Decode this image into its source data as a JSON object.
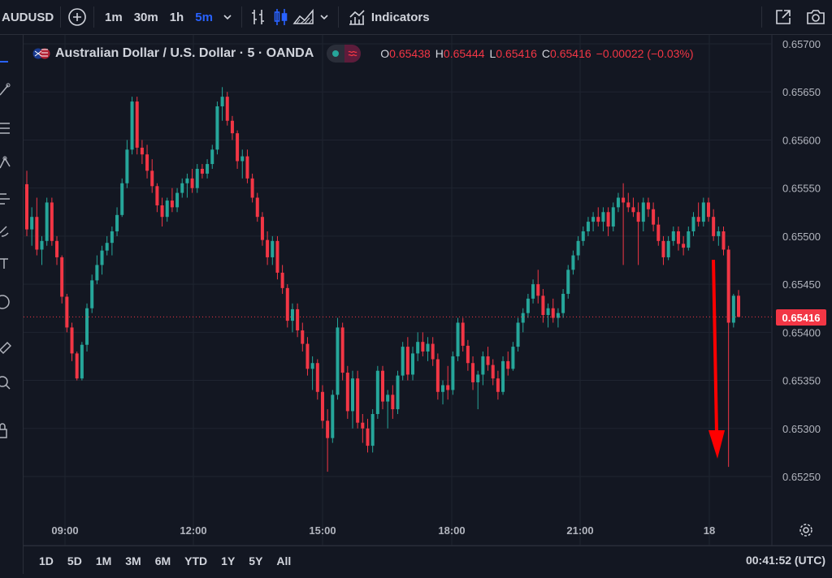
{
  "toolbar": {
    "symbol": "AUDUSD",
    "timeframes": [
      {
        "label": "1m",
        "active": false
      },
      {
        "label": "30m",
        "active": false
      },
      {
        "label": "1h",
        "active": false
      },
      {
        "label": "5m",
        "active": true
      }
    ],
    "indicators_label": "Indicators",
    "icons": [
      "plus-circle-icon",
      "chevron-down-icon",
      "bar-style-icon",
      "candle-style-icon",
      "area-style-icon",
      "indicators-icon",
      "fullscreen-icon",
      "camera-icon"
    ]
  },
  "legend": {
    "title": "Australian Dollar / U.S. Dollar · 5 · OANDA",
    "open_label": "O",
    "open": "0.65438",
    "high_label": "H",
    "high": "0.65444",
    "low_label": "L",
    "low": "0.65416",
    "close_label": "C",
    "close": "0.65416",
    "change": "−0.00022 (−0.03%)"
  },
  "price_tag": "0.65416",
  "bottom": {
    "ranges": [
      "1D",
      "5D",
      "1M",
      "3M",
      "6M",
      "YTD",
      "1Y",
      "5Y",
      "All"
    ],
    "clock": "00:41:52 (UTC)"
  },
  "colors": {
    "background": "#131722",
    "up": "#26a69a",
    "down": "#f23645",
    "arrow": "#ff0000",
    "accent": "#2962ff"
  },
  "chart_data": {
    "type": "candlestick",
    "symbol": "AUDUSD",
    "interval": "5",
    "ylim": [
      0.6523,
      0.6571
    ],
    "y_ticks": [
      "0.65700",
      "0.65650",
      "0.65600",
      "0.65550",
      "0.65500",
      "0.65450",
      "0.65400",
      "0.65350",
      "0.65300",
      "0.65250"
    ],
    "x_tick_labels": [
      "09:00",
      "12:00",
      "15:00",
      "18:00",
      "21:00",
      "18"
    ],
    "current_price": 0.65416,
    "grid": true,
    "candles": [
      [
        0.65554,
        0.65568,
        0.655,
        0.65507
      ],
      [
        0.65507,
        0.6553,
        0.6549,
        0.6552
      ],
      [
        0.6552,
        0.6554,
        0.6548,
        0.65486
      ],
      [
        0.65486,
        0.655,
        0.6547,
        0.65495
      ],
      [
        0.65495,
        0.6554,
        0.6549,
        0.65535
      ],
      [
        0.65535,
        0.6554,
        0.6549,
        0.65495
      ],
      [
        0.65495,
        0.655,
        0.6547,
        0.65478
      ],
      [
        0.65478,
        0.6548,
        0.6543,
        0.65437
      ],
      [
        0.65437,
        0.6544,
        0.654,
        0.65405
      ],
      [
        0.65405,
        0.6541,
        0.6537,
        0.65378
      ],
      [
        0.65378,
        0.6538,
        0.6535,
        0.65352
      ],
      [
        0.65352,
        0.6539,
        0.6535,
        0.65387
      ],
      [
        0.65387,
        0.6543,
        0.6538,
        0.65425
      ],
      [
        0.65425,
        0.6546,
        0.6542,
        0.65454
      ],
      [
        0.65454,
        0.6548,
        0.6545,
        0.6547
      ],
      [
        0.6547,
        0.6549,
        0.6546,
        0.65485
      ],
      [
        0.65485,
        0.655,
        0.6548,
        0.65493
      ],
      [
        0.65493,
        0.6551,
        0.6548,
        0.65505
      ],
      [
        0.65505,
        0.6553,
        0.655,
        0.65522
      ],
      [
        0.65522,
        0.6556,
        0.6552,
        0.65555
      ],
      [
        0.65555,
        0.656,
        0.6555,
        0.6559
      ],
      [
        0.6559,
        0.65645,
        0.65585,
        0.6564
      ],
      [
        0.6564,
        0.65645,
        0.65585,
        0.65592
      ],
      [
        0.65592,
        0.656,
        0.65575,
        0.65585
      ],
      [
        0.65585,
        0.65595,
        0.6556,
        0.65568
      ],
      [
        0.65568,
        0.6558,
        0.65545,
        0.65552
      ],
      [
        0.65552,
        0.65555,
        0.65525,
        0.65532
      ],
      [
        0.65532,
        0.6554,
        0.6551,
        0.6552
      ],
      [
        0.6552,
        0.6554,
        0.65515,
        0.65537
      ],
      [
        0.65537,
        0.6555,
        0.65525,
        0.6553
      ],
      [
        0.6553,
        0.6555,
        0.65525,
        0.65545
      ],
      [
        0.65545,
        0.6556,
        0.6554,
        0.65555
      ],
      [
        0.65555,
        0.65565,
        0.6554,
        0.6556
      ],
      [
        0.6556,
        0.6557,
        0.65545,
        0.6555
      ],
      [
        0.6555,
        0.65575,
        0.65545,
        0.6557
      ],
      [
        0.6557,
        0.65575,
        0.6556,
        0.65565
      ],
      [
        0.65565,
        0.6558,
        0.6556,
        0.65575
      ],
      [
        0.65575,
        0.65595,
        0.6557,
        0.6559
      ],
      [
        0.6559,
        0.6564,
        0.65585,
        0.65635
      ],
      [
        0.65635,
        0.65655,
        0.6562,
        0.65645
      ],
      [
        0.65645,
        0.6565,
        0.65615,
        0.6562
      ],
      [
        0.6562,
        0.65625,
        0.656,
        0.65607
      ],
      [
        0.65607,
        0.6561,
        0.6557,
        0.65578
      ],
      [
        0.65578,
        0.6559,
        0.6556,
        0.65583
      ],
      [
        0.65583,
        0.6559,
        0.65555,
        0.6556
      ],
      [
        0.6556,
        0.65565,
        0.65535,
        0.6554
      ],
      [
        0.6554,
        0.65545,
        0.65515,
        0.6552
      ],
      [
        0.6552,
        0.65525,
        0.6549,
        0.65496
      ],
      [
        0.65496,
        0.65505,
        0.6547,
        0.65478
      ],
      [
        0.65478,
        0.655,
        0.6547,
        0.65495
      ],
      [
        0.65495,
        0.655,
        0.65455,
        0.65462
      ],
      [
        0.65462,
        0.6547,
        0.6544,
        0.65446
      ],
      [
        0.65446,
        0.6545,
        0.65405,
        0.65412
      ],
      [
        0.65412,
        0.6543,
        0.654,
        0.65424
      ],
      [
        0.65424,
        0.6543,
        0.65395,
        0.65402
      ],
      [
        0.65402,
        0.6541,
        0.6538,
        0.65388
      ],
      [
        0.65388,
        0.65395,
        0.65355,
        0.65362
      ],
      [
        0.65362,
        0.65375,
        0.6534,
        0.65368
      ],
      [
        0.65368,
        0.65372,
        0.6533,
        0.65338
      ],
      [
        0.65338,
        0.65345,
        0.653,
        0.65308
      ],
      [
        0.65308,
        0.6532,
        0.65255,
        0.6529
      ],
      [
        0.6529,
        0.6534,
        0.65285,
        0.65335
      ],
      [
        0.65335,
        0.65415,
        0.6533,
        0.65405
      ],
      [
        0.65405,
        0.6541,
        0.6535,
        0.65358
      ],
      [
        0.65358,
        0.65365,
        0.6531,
        0.65318
      ],
      [
        0.65318,
        0.6536,
        0.653,
        0.65352
      ],
      [
        0.65352,
        0.6536,
        0.653,
        0.65306
      ],
      [
        0.65306,
        0.65315,
        0.65285,
        0.653
      ],
      [
        0.653,
        0.6531,
        0.65275,
        0.65282
      ],
      [
        0.65282,
        0.6532,
        0.65275,
        0.65315
      ],
      [
        0.65315,
        0.65365,
        0.6531,
        0.6536
      ],
      [
        0.6536,
        0.65365,
        0.6532,
        0.65328
      ],
      [
        0.65328,
        0.6534,
        0.653,
        0.65335
      ],
      [
        0.65335,
        0.65345,
        0.6531,
        0.6532
      ],
      [
        0.6532,
        0.6536,
        0.65315,
        0.65355
      ],
      [
        0.65355,
        0.6539,
        0.6535,
        0.65385
      ],
      [
        0.65385,
        0.65395,
        0.6535,
        0.65356
      ],
      [
        0.65356,
        0.65385,
        0.6535,
        0.65378
      ],
      [
        0.65378,
        0.654,
        0.6537,
        0.6539
      ],
      [
        0.6539,
        0.654,
        0.65375,
        0.6538
      ],
      [
        0.6538,
        0.65395,
        0.6537,
        0.65388
      ],
      [
        0.65388,
        0.65395,
        0.65365,
        0.65372
      ],
      [
        0.65372,
        0.65378,
        0.6533,
        0.65338
      ],
      [
        0.65338,
        0.6535,
        0.65325,
        0.65345
      ],
      [
        0.65345,
        0.65365,
        0.6533,
        0.6534
      ],
      [
        0.6534,
        0.6538,
        0.65335,
        0.65375
      ],
      [
        0.65375,
        0.65415,
        0.6537,
        0.6541
      ],
      [
        0.6541,
        0.65415,
        0.6538,
        0.65386
      ],
      [
        0.65386,
        0.65392,
        0.6536,
        0.65368
      ],
      [
        0.65368,
        0.65375,
        0.6534,
        0.65348
      ],
      [
        0.65348,
        0.6536,
        0.6532,
        0.65356
      ],
      [
        0.65356,
        0.6538,
        0.65345,
        0.65375
      ],
      [
        0.65375,
        0.65385,
        0.6536,
        0.65366
      ],
      [
        0.65366,
        0.65372,
        0.65345,
        0.65352
      ],
      [
        0.65352,
        0.6536,
        0.6533,
        0.65338
      ],
      [
        0.65338,
        0.65375,
        0.65335,
        0.6537
      ],
      [
        0.6537,
        0.6538,
        0.65355,
        0.65362
      ],
      [
        0.65362,
        0.6539,
        0.6536,
        0.65385
      ],
      [
        0.65385,
        0.65415,
        0.6538,
        0.6541
      ],
      [
        0.6541,
        0.65425,
        0.654,
        0.6542
      ],
      [
        0.6542,
        0.6544,
        0.65415,
        0.65435
      ],
      [
        0.65435,
        0.65455,
        0.6543,
        0.6545
      ],
      [
        0.6545,
        0.65465,
        0.6543,
        0.65438
      ],
      [
        0.65438,
        0.65445,
        0.6541,
        0.65418
      ],
      [
        0.65418,
        0.6543,
        0.65405,
        0.65425
      ],
      [
        0.65425,
        0.65435,
        0.6541,
        0.65415
      ],
      [
        0.65415,
        0.65425,
        0.65405,
        0.6542
      ],
      [
        0.6542,
        0.65445,
        0.65415,
        0.6544
      ],
      [
        0.6544,
        0.6547,
        0.65435,
        0.65465
      ],
      [
        0.65465,
        0.65485,
        0.6546,
        0.6548
      ],
      [
        0.6548,
        0.655,
        0.65475,
        0.65495
      ],
      [
        0.65495,
        0.6551,
        0.6549,
        0.65505
      ],
      [
        0.65505,
        0.6552,
        0.655,
        0.65515
      ],
      [
        0.65515,
        0.65525,
        0.65505,
        0.6552
      ],
      [
        0.6552,
        0.6553,
        0.6551,
        0.65515
      ],
      [
        0.65515,
        0.6553,
        0.65505,
        0.65525
      ],
      [
        0.65525,
        0.6553,
        0.655,
        0.6551
      ],
      [
        0.6551,
        0.65535,
        0.65505,
        0.6553
      ],
      [
        0.6553,
        0.65545,
        0.65525,
        0.6554
      ],
      [
        0.6554,
        0.65555,
        0.6547,
        0.65535
      ],
      [
        0.65535,
        0.65545,
        0.65525,
        0.6553
      ],
      [
        0.6553,
        0.6554,
        0.6552,
        0.65525
      ],
      [
        0.65525,
        0.65535,
        0.6547,
        0.65515
      ],
      [
        0.65515,
        0.6554,
        0.65505,
        0.65535
      ],
      [
        0.65535,
        0.6554,
        0.6552,
        0.65528
      ],
      [
        0.65528,
        0.65535,
        0.65505,
        0.65512
      ],
      [
        0.65512,
        0.6552,
        0.6549,
        0.65495
      ],
      [
        0.65495,
        0.655,
        0.6547,
        0.65478
      ],
      [
        0.65478,
        0.655,
        0.65475,
        0.65495
      ],
      [
        0.65495,
        0.6551,
        0.6549,
        0.65505
      ],
      [
        0.65505,
        0.6551,
        0.65485,
        0.65492
      ],
      [
        0.65492,
        0.655,
        0.6548,
        0.65488
      ],
      [
        0.65488,
        0.6551,
        0.65485,
        0.65505
      ],
      [
        0.65505,
        0.65525,
        0.655,
        0.6552
      ],
      [
        0.6552,
        0.65535,
        0.6551,
        0.65515
      ],
      [
        0.65515,
        0.6554,
        0.6551,
        0.65535
      ],
      [
        0.65535,
        0.6554,
        0.65515,
        0.6552
      ],
      [
        0.6552,
        0.65528,
        0.65495,
        0.655
      ],
      [
        0.655,
        0.6551,
        0.6549,
        0.65505
      ],
      [
        0.65505,
        0.6551,
        0.6548,
        0.65486
      ],
      [
        0.65486,
        0.6549,
        0.6526,
        0.6541
      ],
      [
        0.6541,
        0.6544,
        0.65405,
        0.65438
      ],
      [
        0.65438,
        0.65444,
        0.65416,
        0.65416
      ]
    ]
  }
}
